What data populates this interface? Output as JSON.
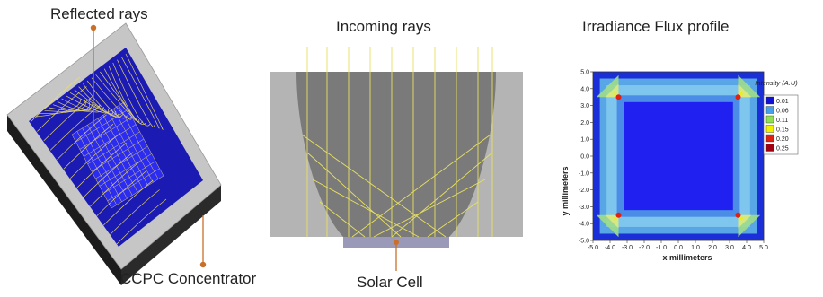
{
  "left_panel": {
    "top_label": "Reflected rays",
    "bottom_label": "CCPC Concentrator"
  },
  "middle_panel": {
    "top_label": "Incoming rays",
    "bottom_label": "Solar Cell"
  },
  "right_panel": {
    "title": "Irradiance Flux profile",
    "y_axis_label": "y millimeters",
    "x_axis_label": "x millimeters",
    "legend_title": "Intensity (A.U)",
    "legend": [
      {
        "value": "0.01",
        "color": "#1010d8"
      },
      {
        "value": "0.06",
        "color": "#4aa0e8"
      },
      {
        "value": "0.11",
        "color": "#90e050"
      },
      {
        "value": "0.15",
        "color": "#f0f000"
      },
      {
        "value": "0.20",
        "color": "#e02010"
      },
      {
        "value": "0.25",
        "color": "#a00010"
      }
    ],
    "y_ticks": [
      "5.0",
      "4.0",
      "3.0",
      "2.0",
      "1.0",
      "0.0",
      "-1.0",
      "-2.0",
      "-3.0",
      "-4.0",
      "-5.0"
    ],
    "x_ticks": [
      "-5.0",
      "-4.0",
      "-3.0",
      "-2.0",
      "-1.0",
      "0.0",
      "1.0",
      "2.0",
      "3.0",
      "4.0",
      "5.0"
    ]
  },
  "colors": {
    "leader_line": "#c8702a",
    "ray": "#f0e060",
    "frame_gray": "#c4c4c4",
    "frame_dark": "#1c1c1c",
    "concentrator_blue": "#1a1ab4",
    "cell_blue": "#2c2cf0"
  }
}
